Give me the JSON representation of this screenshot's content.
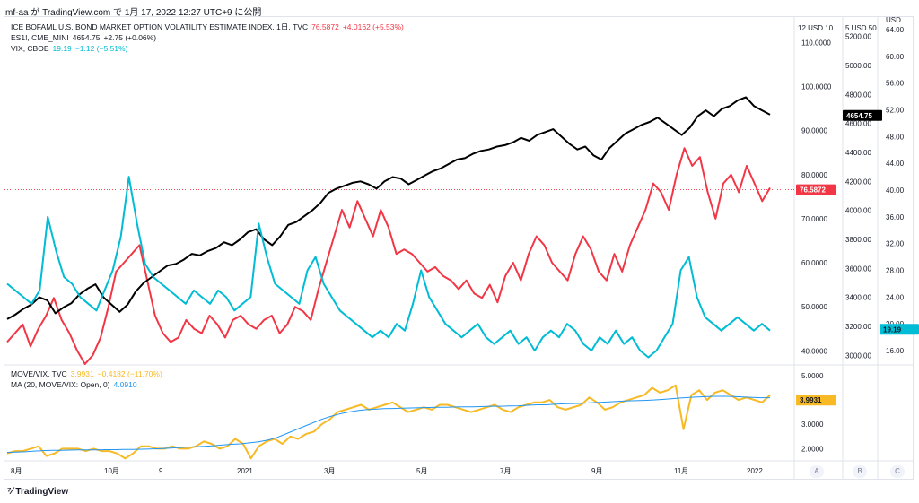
{
  "header": "mf-aa が TradingView.com で 1月 17, 2022 12:27 UTC+9 に公開",
  "legend_top": [
    {
      "name": "ICE BOFAML U.S. BOND MARKET OPTION VOLATILITY ESTIMATE INDEX, 1日, TVC",
      "value": "76.5872",
      "change": "+4.0162 (+5.53%)",
      "color": "#f23645"
    },
    {
      "name": "ES1!, CME_MINI",
      "value": "4654.75",
      "change": "+2.75 (+0.06%)",
      "color": "#131722"
    },
    {
      "name": "VIX, CBOE",
      "value": "19.19",
      "change": "−1.12 (−5.51%)",
      "color": "#00bcd4"
    }
  ],
  "legend_bottom": [
    {
      "name": "MOVE/VIX, TVC",
      "value": "3.9931",
      "change": "−0.4182 (−11.70%)",
      "color": "#f7b924"
    },
    {
      "name": "MA (20, MOVE/VIX: Open, 0)",
      "value": "4.0910",
      "change": "",
      "color": "#2196f3"
    }
  ],
  "axis_headers": {
    "move": "12 USD 10",
    "es": "5 USD 50",
    "vix": "USD"
  },
  "price_badges": {
    "es": "4654.75",
    "move": "76.5872",
    "vix": "19.19",
    "ratio": "3.9931"
  },
  "ab_buttons": [
    "A",
    "B",
    "C"
  ],
  "footer": "TradingView",
  "chart_data": [
    {
      "type": "line",
      "x_ticks": [
        "8月",
        "10月",
        "9",
        "2021",
        "3月",
        "5月",
        "7月",
        "9月",
        "11月",
        "2022"
      ],
      "series": [
        {
          "name": "ICE BOFAML U.S. BOND MARKET OPTION VOLATILITY ESTIMATE INDEX",
          "axis": "move",
          "color": "#f23645",
          "values": [
            42,
            44,
            46,
            41,
            45,
            48,
            52,
            47,
            44,
            40,
            37,
            39,
            43,
            50,
            58,
            60,
            62,
            64,
            56,
            48,
            44,
            42,
            43,
            47,
            45,
            44,
            48,
            46,
            43,
            47,
            48,
            46,
            45,
            47,
            48,
            44,
            46,
            50,
            49,
            47,
            54,
            60,
            66,
            72,
            68,
            74,
            70,
            66,
            72,
            68,
            62,
            63,
            62,
            60,
            58,
            59,
            57,
            56,
            54,
            56,
            53,
            52,
            55,
            51,
            57,
            60,
            56,
            62,
            66,
            64,
            60,
            58,
            56,
            62,
            66,
            63,
            58,
            56,
            62,
            58,
            64,
            68,
            72,
            78,
            76,
            72,
            80,
            86,
            82,
            84,
            76,
            70,
            78,
            80,
            76,
            82,
            78,
            74,
            77
          ]
        },
        {
          "name": "ES1!, CME_MINI",
          "axis": "es",
          "color": "#000000",
          "values": [
            3250,
            3280,
            3320,
            3350,
            3400,
            3380,
            3290,
            3330,
            3360,
            3420,
            3460,
            3490,
            3400,
            3350,
            3300,
            3350,
            3440,
            3500,
            3540,
            3580,
            3620,
            3630,
            3660,
            3700,
            3690,
            3720,
            3740,
            3780,
            3760,
            3800,
            3850,
            3870,
            3800,
            3760,
            3820,
            3900,
            3920,
            3960,
            4000,
            4050,
            4120,
            4150,
            4170,
            4190,
            4200,
            4180,
            4150,
            4200,
            4230,
            4220,
            4180,
            4210,
            4240,
            4270,
            4290,
            4320,
            4350,
            4360,
            4390,
            4410,
            4420,
            4440,
            4450,
            4470,
            4500,
            4480,
            4520,
            4540,
            4560,
            4510,
            4460,
            4420,
            4440,
            4380,
            4350,
            4430,
            4480,
            4530,
            4560,
            4590,
            4610,
            4640,
            4600,
            4560,
            4520,
            4570,
            4650,
            4690,
            4650,
            4700,
            4720,
            4760,
            4780,
            4720,
            4690,
            4660
          ]
        },
        {
          "name": "VIX, CBOE",
          "axis": "vix",
          "color": "#00bcd4",
          "values": [
            26,
            25,
            24,
            23,
            25,
            36,
            31,
            27,
            26,
            24,
            23,
            22,
            25,
            28,
            33,
            42,
            35,
            29,
            27,
            26,
            25,
            24,
            23,
            25,
            24,
            23,
            25,
            24,
            22,
            23,
            24,
            35,
            30,
            26,
            25,
            24,
            23,
            28,
            30,
            26,
            24,
            22,
            21,
            20,
            19,
            18,
            19,
            18,
            20,
            19,
            23,
            28,
            24,
            22,
            20,
            19,
            18,
            19,
            20,
            18,
            17,
            18,
            19,
            17,
            18,
            16,
            18,
            19,
            18,
            20,
            19,
            17,
            16,
            18,
            17,
            19,
            17,
            18,
            16,
            15,
            16,
            18,
            20,
            28,
            30,
            24,
            21,
            20,
            19,
            20,
            21,
            20,
            19,
            20,
            19
          ]
        },
        {
          "name": "MOVE/VIX, TVC",
          "axis": "ratio",
          "color": "#f7b924",
          "values": [
            1.8,
            1.9,
            1.9,
            2.0,
            2.1,
            1.7,
            1.8,
            2.0,
            2.0,
            2.0,
            1.9,
            2.0,
            1.9,
            1.9,
            1.8,
            1.6,
            1.8,
            2.1,
            2.1,
            2.0,
            2.0,
            2.1,
            2.0,
            2.0,
            2.1,
            2.3,
            2.2,
            2.0,
            2.1,
            2.4,
            2.2,
            1.6,
            2.1,
            2.3,
            2.4,
            2.2,
            2.5,
            2.4,
            2.6,
            2.7,
            3.0,
            3.2,
            3.5,
            3.6,
            3.7,
            3.8,
            3.6,
            3.7,
            3.8,
            3.9,
            3.7,
            3.5,
            3.6,
            3.7,
            3.6,
            3.8,
            3.8,
            3.7,
            3.6,
            3.5,
            3.6,
            3.7,
            3.8,
            3.6,
            3.5,
            3.7,
            3.8,
            3.9,
            3.9,
            4.0,
            3.7,
            3.6,
            3.7,
            3.8,
            4.1,
            3.9,
            3.6,
            3.7,
            3.9,
            4.0,
            4.1,
            4.2,
            4.5,
            4.3,
            4.4,
            4.6,
            2.8,
            4.2,
            4.4,
            4.0,
            4.3,
            4.4,
            4.2,
            4.0,
            4.1,
            4.0,
            3.9,
            4.2
          ]
        },
        {
          "name": "MA (20, MOVE/VIX: Open, 0)",
          "axis": "ratio",
          "color": "#2196f3",
          "values": [
            1.85,
            1.86,
            1.87,
            1.9,
            1.92,
            1.93,
            1.93,
            1.94,
            1.95,
            1.95,
            1.95,
            1.96,
            1.96,
            1.97,
            1.97,
            1.98,
            1.99,
            2.0,
            2.02,
            2.04,
            2.06,
            2.08,
            2.1,
            2.12,
            2.15,
            2.18,
            2.2,
            2.24,
            2.28,
            2.35,
            2.45,
            2.6,
            2.75,
            2.9,
            3.05,
            3.2,
            3.32,
            3.42,
            3.5,
            3.56,
            3.6,
            3.62,
            3.64,
            3.65,
            3.66,
            3.67,
            3.68,
            3.69,
            3.7,
            3.7,
            3.71,
            3.72,
            3.72,
            3.73,
            3.74,
            3.74,
            3.75,
            3.76,
            3.78,
            3.8,
            3.8,
            3.82,
            3.84,
            3.85,
            3.86,
            3.88,
            3.9,
            3.92,
            3.94,
            3.96,
            3.97,
            3.98,
            4.0,
            4.02,
            4.05,
            4.08,
            4.1,
            4.12,
            4.14,
            4.15,
            4.15,
            4.14,
            4.12,
            4.1,
            4.09,
            4.09
          ]
        }
      ]
    },
    {
      "axes": {
        "move": {
          "ticks": [
            "110.0000",
            "100.0000",
            "90.0000",
            "80.0000",
            "70.0000",
            "60.0000",
            "50.0000",
            "40.0000"
          ],
          "min": 37,
          "max": 116
        },
        "es": {
          "ticks": [
            "5200.00",
            "5000.00",
            "4800.00",
            "4600.00",
            "4400.00",
            "4200.00",
            "4000.00",
            "3800.00",
            "3600.00",
            "3400.00",
            "3200.00",
            "3000.00"
          ],
          "min": 2940,
          "max": 5340
        },
        "vix": {
          "ticks": [
            "64.00",
            "60.00",
            "56.00",
            "52.00",
            "48.00",
            "44.00",
            "40.00",
            "36.00",
            "32.00",
            "28.00",
            "24.00",
            "20.00",
            "16.00"
          ],
          "min": 14,
          "max": 66
        },
        "ratio": {
          "ticks": [
            "5.0000",
            "4.0000",
            "3.0000",
            "2.0000"
          ],
          "min": 1.5,
          "max": 5.4
        }
      }
    }
  ]
}
